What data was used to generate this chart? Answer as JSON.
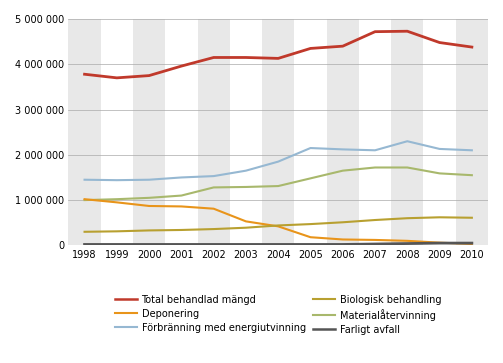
{
  "years": [
    1998,
    1999,
    2000,
    2001,
    2002,
    2003,
    2004,
    2005,
    2006,
    2007,
    2008,
    2009,
    2010
  ],
  "total": [
    3780000,
    3700000,
    3750000,
    3960000,
    4150000,
    4150000,
    4130000,
    4350000,
    4400000,
    4720000,
    4730000,
    4480000,
    4380000
  ],
  "forbranning": [
    1450000,
    1440000,
    1450000,
    1500000,
    1530000,
    1650000,
    1850000,
    2150000,
    2120000,
    2100000,
    2300000,
    2130000,
    2100000
  ],
  "materialater": [
    1000000,
    1020000,
    1050000,
    1100000,
    1280000,
    1290000,
    1310000,
    1480000,
    1650000,
    1720000,
    1720000,
    1590000,
    1550000
  ],
  "deponering": [
    1020000,
    950000,
    870000,
    860000,
    810000,
    530000,
    420000,
    180000,
    130000,
    120000,
    100000,
    60000,
    30000
  ],
  "biologisk": [
    300000,
    310000,
    330000,
    340000,
    360000,
    390000,
    440000,
    470000,
    510000,
    560000,
    600000,
    620000,
    610000
  ],
  "farligt": [
    20000,
    20000,
    20000,
    20000,
    20000,
    20000,
    20000,
    20000,
    20000,
    30000,
    40000,
    50000,
    50000
  ],
  "stripe_years": [
    1998,
    2000,
    2002,
    2004,
    2006,
    2008,
    2010
  ],
  "stripe_color": "#e8e8e8",
  "bg_color": "#ffffff",
  "fig_bg_color": "#ffffff",
  "grid_color": "#aaaaaa",
  "color_total": "#c0392b",
  "color_forbranning": "#96b8d2",
  "color_materialater": "#a8b86c",
  "color_deponering": "#e8941a",
  "color_biologisk": "#b8a030",
  "color_farligt": "#555555",
  "lw_total": 2.0,
  "lw_others": 1.5,
  "ylim": [
    0,
    5000000
  ],
  "ytick_vals": [
    0,
    1000000,
    2000000,
    3000000,
    4000000,
    5000000
  ],
  "ytick_labels": [
    "0",
    "1 000 000",
    "2 000 000",
    "3 000 000",
    "4 000 000",
    "5 000 000"
  ],
  "label_total": "Total behandlad mängd",
  "label_forbranning": "Förbränning med energiutvinning",
  "label_materialater": "Materialåtervinning",
  "label_deponering": "Deponering",
  "label_biologisk": "Biologisk behandling",
  "label_farligt": "Farligt avfall",
  "tick_fontsize": 7,
  "legend_fontsize": 7
}
